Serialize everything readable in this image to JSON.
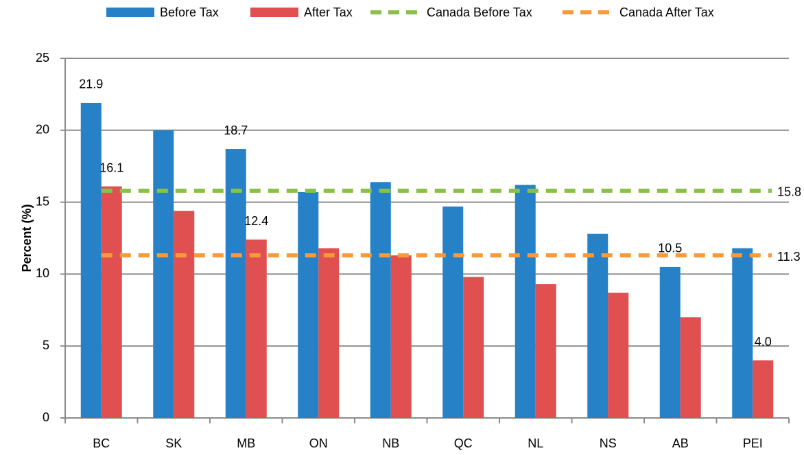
{
  "chart_data": {
    "type": "bar",
    "y_label": "Percent (%)",
    "categories": [
      "BC",
      "SK",
      "MB",
      "ON",
      "NB",
      "QC",
      "NL",
      "NS",
      "AB",
      "PEI"
    ],
    "series": [
      {
        "name": "Before Tax",
        "color": "#2681c6",
        "values": [
          21.9,
          20.0,
          18.7,
          15.7,
          16.4,
          14.7,
          16.2,
          12.8,
          10.5,
          11.8
        ],
        "value_labels": [
          "21.9",
          null,
          "18.7",
          null,
          null,
          null,
          null,
          null,
          "10.5",
          null
        ]
      },
      {
        "name": "After Tax",
        "color": "#e05050",
        "values": [
          16.1,
          14.4,
          12.4,
          11.8,
          11.3,
          9.8,
          9.3,
          8.7,
          7.0,
          4.0
        ],
        "value_labels": [
          "16.1",
          null,
          "12.4",
          null,
          null,
          null,
          null,
          null,
          null,
          "4.0"
        ]
      }
    ],
    "reference_lines": [
      {
        "name": "Canada Before Tax",
        "color": "#8ac04a",
        "value": 15.8,
        "value_label": "15.8"
      },
      {
        "name": "Canada After Tax",
        "color": "#f79a3c",
        "value": 11.3,
        "value_label": "11.3"
      }
    ],
    "ylim": [
      0,
      25
    ],
    "yticks": [
      0,
      5,
      10,
      15,
      20,
      25
    ],
    "grid": true,
    "legend": "top"
  }
}
